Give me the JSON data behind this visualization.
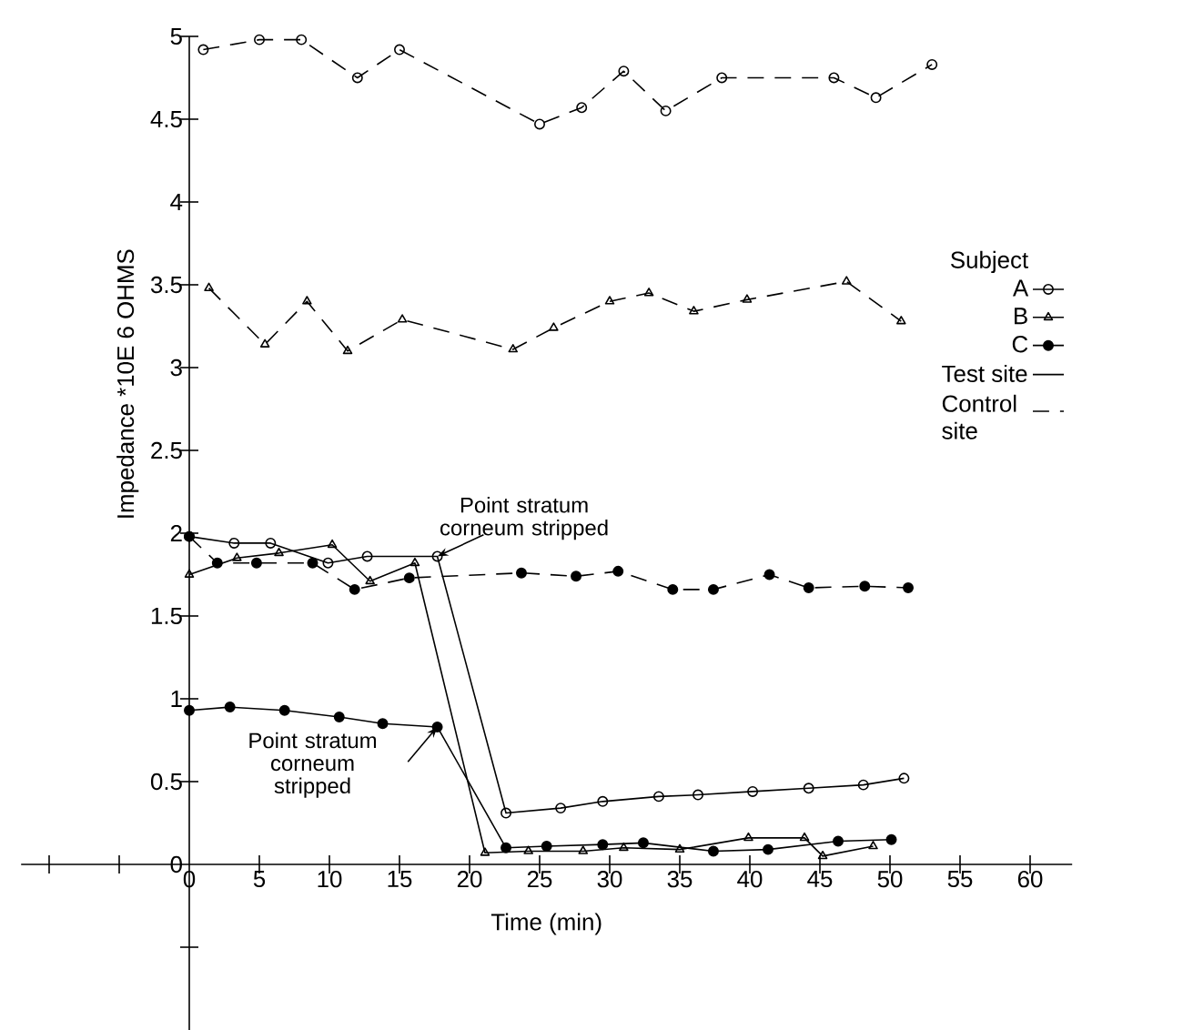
{
  "chart_data": {
    "type": "line",
    "xlabel": "Time (min)",
    "ylabel": "Impedance *10E 6 OHMS",
    "legend_title": "Subject",
    "legend": "right",
    "grid": false,
    "xlim": [
      -12,
      63
    ],
    "ylim": [
      -1,
      5
    ],
    "xticks": [
      {
        "value": -10,
        "label": null
      },
      {
        "value": -5,
        "label": null
      },
      0,
      5,
      10,
      15,
      20,
      25,
      30,
      35,
      40,
      45,
      50,
      55,
      60
    ],
    "yticks": [
      {
        "value": -0.5,
        "label": null
      },
      0,
      0.5,
      1,
      1.5,
      2,
      2.5,
      3,
      3.5,
      4,
      4.5,
      5
    ],
    "series": [
      {
        "name": "A",
        "color": "#000000",
        "marker": "circle",
        "line_style": "solid",
        "x": [
          0,
          3.2,
          5.8,
          9.9,
          12.7,
          17.7,
          22.6,
          26.5,
          29.5,
          33.5,
          36.3,
          40.2,
          44.2,
          48.1,
          51
        ],
        "values": [
          1.98,
          1.94,
          1.94,
          1.82,
          1.86,
          1.86,
          0.31,
          0.34,
          0.38,
          0.41,
          0.42,
          0.44,
          0.46,
          0.48,
          0.52
        ]
      },
      {
        "name": "B",
        "color": "#000000",
        "marker": "triangle",
        "line_style": "solid",
        "x": [
          0,
          3.4,
          6.4,
          10.2,
          12.9,
          16.1,
          21.1,
          24.2,
          28.1,
          31,
          35,
          39.9,
          43.9,
          45.2,
          48.8
        ],
        "values": [
          1.75,
          1.85,
          1.88,
          1.93,
          1.71,
          1.82,
          0.07,
          0.08,
          0.08,
          0.1,
          0.09,
          0.16,
          0.16,
          0.05,
          0.11
        ]
      },
      {
        "name": "C",
        "color": "#000000",
        "marker": "filled circle",
        "line_style": "solid",
        "x": [
          0,
          2.9,
          6.8,
          10.7,
          13.8,
          17.7,
          22.6,
          25.5,
          29.5,
          32.4,
          37.4,
          41.3,
          46.3,
          50.1
        ],
        "values": [
          0.93,
          0.95,
          0.93,
          0.89,
          0.85,
          0.83,
          0.1,
          0.11,
          0.12,
          0.13,
          0.08,
          0.09,
          0.14,
          0.15
        ]
      },
      {
        "color": "#000000",
        "marker": "circle",
        "line_style": "dashed",
        "x": [
          1,
          5,
          8,
          12,
          15,
          25,
          28,
          31,
          34,
          38,
          46,
          49,
          53
        ],
        "values": [
          4.92,
          4.98,
          4.98,
          4.75,
          4.92,
          4.47,
          4.57,
          4.79,
          4.55,
          4.75,
          4.75,
          4.63,
          4.83
        ]
      },
      {
        "color": "#000000",
        "marker": "triangle",
        "line_style": "dashed",
        "x": [
          1.4,
          5.4,
          8.4,
          11.3,
          15.2,
          23.1,
          26,
          30,
          32.8,
          36,
          39.8,
          46.9,
          50.8
        ],
        "values": [
          3.48,
          3.14,
          3.4,
          3.1,
          3.29,
          3.11,
          3.24,
          3.4,
          3.45,
          3.34,
          3.41,
          3.52,
          3.28
        ]
      },
      {
        "color": "#000000",
        "marker": "filled circle",
        "line_style": "dashed",
        "x": [
          0,
          2,
          4.8,
          8.8,
          11.8,
          15.7,
          23.7,
          27.6,
          30.6,
          34.5,
          37.4,
          41.4,
          44.2,
          48.2,
          51.3
        ],
        "values": [
          1.98,
          1.82,
          1.82,
          1.82,
          1.66,
          1.73,
          1.76,
          1.74,
          1.77,
          1.66,
          1.66,
          1.75,
          1.67,
          1.68,
          1.67
        ]
      }
    ],
    "annotations": [
      {
        "text": "Point stratum corneum stripped",
        "x": 17.7,
        "y": 1.86
      },
      {
        "text": "Point stratum corneum stripped",
        "x": 17.7,
        "y": 0.83
      },
      "Test site",
      "Control site"
    ]
  }
}
